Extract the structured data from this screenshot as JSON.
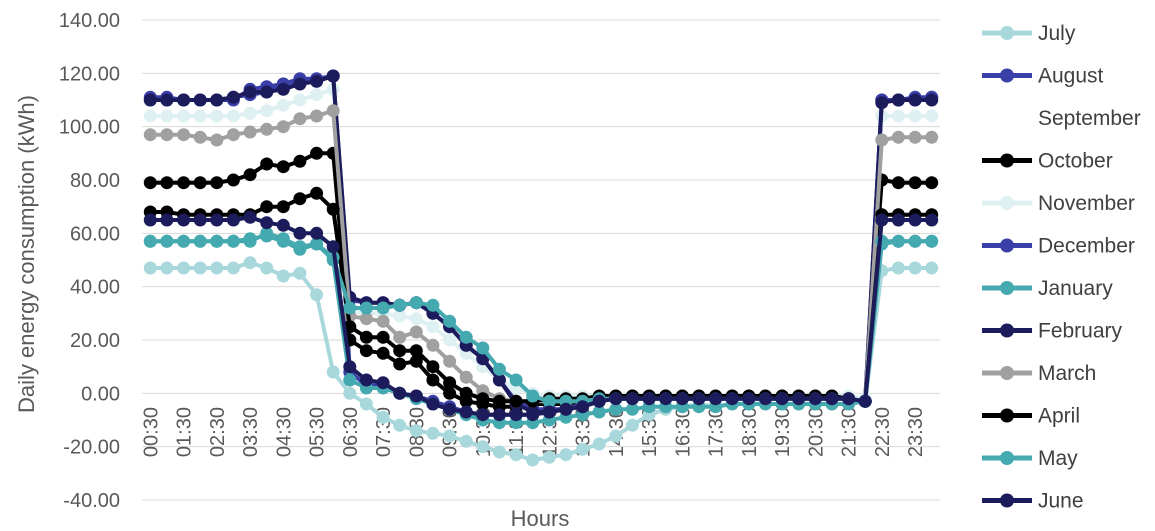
{
  "chart_data": {
    "type": "line",
    "title": "",
    "xlabel": "Hours",
    "ylabel": "Daily energy consumption (kWh)",
    "ylim": [
      -40,
      140
    ],
    "ytick_labels": [
      "-40.00",
      "-20.00",
      "0.00",
      "20.00",
      "40.00",
      "60.00",
      "80.00",
      "100.00",
      "120.00",
      "140.00"
    ],
    "grid": true,
    "legend_position": "right",
    "categories": [
      "00:30",
      "01:00",
      "01:30",
      "02:00",
      "02:30",
      "03:00",
      "03:30",
      "04:00",
      "04:30",
      "05:00",
      "05:30",
      "06:00",
      "06:30",
      "07:00",
      "07:30",
      "08:00",
      "08:30",
      "09:00",
      "09:30",
      "10:00",
      "10:30",
      "11:00",
      "11:30",
      "12:00",
      "12:30",
      "13:00",
      "13:30",
      "14:00",
      "14:30",
      "15:00",
      "15:30",
      "16:00",
      "16:30",
      "17:00",
      "17:30",
      "18:00",
      "18:30",
      "19:00",
      "19:30",
      "20:00",
      "20:30",
      "21:00",
      "21:30",
      "22:00",
      "22:30",
      "23:00",
      "23:30",
      "00:00"
    ],
    "xtick_labels": [
      "00:30",
      "01:30",
      "02:30",
      "03:30",
      "04:30",
      "05:30",
      "06:30",
      "07:30",
      "08:30",
      "09:30",
      "10:30",
      "11:30",
      "12:30",
      "13:30",
      "14:30",
      "15:30",
      "16:30",
      "17:30",
      "18:30",
      "19:30",
      "20:30",
      "21:30",
      "22:30",
      "23:30"
    ],
    "series": [
      {
        "name": "July",
        "color": "#a8d8dc",
        "values": [
          47,
          47,
          47,
          47,
          47,
          47,
          49,
          47,
          44,
          45,
          37,
          8,
          0,
          -4,
          -9,
          -12,
          -14,
          -15,
          -16,
          -18,
          -20,
          -22,
          -23,
          -25,
          -24,
          -23,
          -21,
          -19,
          -16,
          -12,
          -8,
          -6,
          -5,
          -4,
          -3,
          -3,
          -3,
          -3,
          -3,
          -3,
          -3,
          -3,
          -3,
          -3,
          46,
          47,
          47,
          47
        ]
      },
      {
        "name": "August",
        "color": "#3a3fa8",
        "values": [
          111,
          111,
          110,
          110,
          110,
          111,
          112,
          113,
          116,
          117,
          117,
          119,
          8,
          3,
          3,
          0,
          -1,
          -3,
          -5,
          -7,
          -8,
          -8,
          -8,
          -8,
          -7,
          -6,
          -4,
          -2,
          -2,
          -2,
          -2,
          -2,
          -2,
          -2,
          -2,
          -2,
          -2,
          -2,
          -2,
          -2,
          -2,
          -2,
          -2,
          -3,
          110,
          110,
          110,
          111
        ]
      },
      {
        "name": "September",
        "color": "#ffffff",
        "values": [
          104,
          104,
          104,
          104,
          104,
          105,
          106,
          108,
          110,
          112,
          112,
          114,
          30,
          28,
          27,
          27,
          26,
          22,
          15,
          9,
          4,
          0,
          -3,
          -5,
          -5,
          -5,
          -4,
          -3,
          -3,
          -3,
          -3,
          -3,
          -3,
          -3,
          -3,
          -3,
          -3,
          -3,
          -3,
          -3,
          -3,
          -3,
          -3,
          -3,
          104,
          104,
          104,
          104
        ]
      },
      {
        "name": "October",
        "color": "#000000",
        "values": [
          79,
          79,
          79,
          79,
          79,
          80,
          82,
          86,
          85,
          87,
          90,
          90,
          20,
          16,
          15,
          11,
          12,
          5,
          0,
          -3,
          -4,
          -5,
          -5,
          -4,
          -4,
          -4,
          -3,
          -2,
          -2,
          -2,
          -2,
          -2,
          -2,
          -2,
          -2,
          -2,
          -2,
          -2,
          -2,
          -2,
          -2,
          -2,
          -2,
          -3,
          80,
          79,
          79,
          79
        ]
      },
      {
        "name": "November",
        "color": "#dff0f2",
        "values": [
          104,
          104,
          104,
          104,
          104,
          104,
          105,
          106,
          108,
          110,
          112,
          114,
          31,
          30,
          30,
          29,
          28,
          25,
          20,
          15,
          10,
          5,
          2,
          0,
          -1,
          -1,
          -1,
          -1,
          -1,
          -1,
          -1,
          -1,
          -1,
          -1,
          -1,
          -1,
          -1,
          -1,
          -1,
          -1,
          -1,
          -1,
          -1,
          -2,
          104,
          104,
          104,
          104
        ]
      },
      {
        "name": "December",
        "color": "#3a3fa8",
        "values": [
          110,
          110,
          110,
          110,
          110,
          110,
          114,
          115,
          116,
          118,
          118,
          119,
          35,
          34,
          34,
          33,
          34,
          30,
          25,
          18,
          13,
          5,
          -3,
          -6,
          -6,
          -6,
          -4,
          -2,
          -1,
          -1,
          -1,
          -1,
          -1,
          -1,
          -1,
          -1,
          -1,
          -1,
          -1,
          -1,
          -1,
          -1,
          -2,
          -3,
          110,
          110,
          111,
          111
        ]
      },
      {
        "name": "January",
        "color": "#45a9b0",
        "values": [
          57,
          57,
          57,
          57,
          57,
          57,
          58,
          59,
          57,
          54,
          56,
          50,
          5,
          2,
          2,
          0,
          -2,
          -4,
          -6,
          -8,
          -10,
          -11,
          -11,
          -11,
          -10,
          -9,
          -8,
          -7,
          -6,
          -6,
          -5,
          -5,
          -5,
          -5,
          -5,
          -4,
          -4,
          -4,
          -4,
          -4,
          -4,
          -4,
          -4,
          -3,
          56,
          57,
          57,
          57
        ]
      },
      {
        "name": "February",
        "color": "#1c1c5c",
        "values": [
          110,
          110,
          110,
          110,
          110,
          111,
          113,
          113,
          114,
          116,
          117,
          119,
          36,
          34,
          34,
          33,
          34,
          30,
          25,
          18,
          13,
          5,
          -4,
          -7,
          -7,
          -6,
          -5,
          -3,
          -2,
          -2,
          -2,
          -2,
          -2,
          -2,
          -2,
          -2,
          -2,
          -2,
          -2,
          -2,
          -2,
          -2,
          -2,
          -3,
          109,
          110,
          110,
          110
        ]
      },
      {
        "name": "March",
        "color": "#a0a0a0",
        "values": [
          97,
          97,
          97,
          96,
          95,
          97,
          98,
          99,
          100,
          103,
          104,
          106,
          29,
          28,
          27,
          21,
          23,
          18,
          12,
          6,
          1,
          -2,
          -3,
          -3,
          -3,
          -3,
          -3,
          -2,
          -2,
          -2,
          -2,
          -2,
          -2,
          -2,
          -2,
          -2,
          -2,
          -2,
          -2,
          -2,
          -2,
          -2,
          -2,
          -3,
          95,
          96,
          96,
          96
        ]
      },
      {
        "name": "April",
        "color": "#000000",
        "values": [
          68,
          68,
          67,
          67,
          67,
          67,
          67,
          70,
          70,
          73,
          75,
          69,
          25,
          21,
          21,
          16,
          16,
          10,
          4,
          0,
          -2,
          -3,
          -3,
          -3,
          -2,
          -2,
          -2,
          -1,
          -1,
          -1,
          -1,
          -1,
          -1,
          -1,
          -1,
          -1,
          -1,
          -1,
          -1,
          -1,
          -1,
          -1,
          -2,
          -3,
          67,
          67,
          67,
          67
        ]
      },
      {
        "name": "May",
        "color": "#45a9b0",
        "values": [
          57,
          57,
          57,
          57,
          57,
          57,
          57,
          60,
          58,
          55,
          56,
          51,
          32,
          32,
          32,
          33,
          34,
          33,
          27,
          21,
          17,
          9,
          5,
          -1,
          -3,
          -3,
          -3,
          -2,
          -2,
          -2,
          -2,
          -2,
          -2,
          -2,
          -2,
          -2,
          -2,
          -2,
          -2,
          -2,
          -2,
          -2,
          -2,
          -3,
          57,
          57,
          57,
          57
        ]
      },
      {
        "name": "June",
        "color": "#1c1c5c",
        "values": [
          65,
          65,
          65,
          65,
          65,
          65,
          66,
          64,
          63,
          60,
          60,
          55,
          10,
          5,
          4,
          0,
          -1,
          -4,
          -6,
          -7,
          -8,
          -8,
          -8,
          -8,
          -7,
          -6,
          -5,
          -3,
          -2,
          -2,
          -2,
          -2,
          -2,
          -2,
          -2,
          -2,
          -2,
          -2,
          -2,
          -2,
          -2,
          -2,
          -2,
          -3,
          65,
          65,
          65,
          65
        ]
      }
    ]
  }
}
